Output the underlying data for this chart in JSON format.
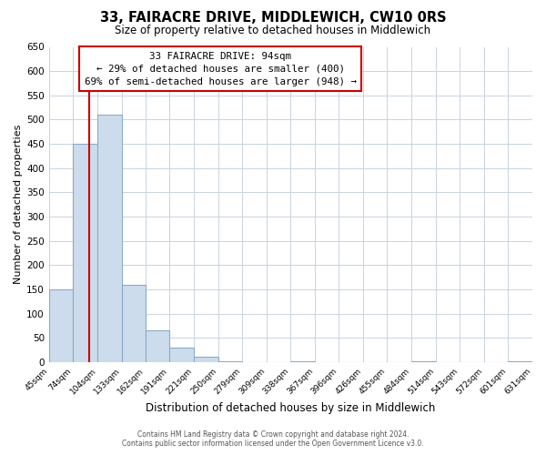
{
  "title": "33, FAIRACRE DRIVE, MIDDLEWICH, CW10 0RS",
  "subtitle": "Size of property relative to detached houses in Middlewich",
  "xlabel": "Distribution of detached houses by size in Middlewich",
  "ylabel": "Number of detached properties",
  "bin_edges": [
    45,
    74,
    104,
    133,
    162,
    191,
    221,
    250,
    279,
    309,
    338,
    367,
    396,
    426,
    455,
    484,
    514,
    543,
    572,
    601,
    631
  ],
  "bin_labels": [
    "45sqm",
    "74sqm",
    "104sqm",
    "133sqm",
    "162sqm",
    "191sqm",
    "221sqm",
    "250sqm",
    "279sqm",
    "309sqm",
    "338sqm",
    "367sqm",
    "396sqm",
    "426sqm",
    "455sqm",
    "484sqm",
    "514sqm",
    "543sqm",
    "572sqm",
    "601sqm",
    "631sqm"
  ],
  "bar_heights": [
    150,
    450,
    510,
    160,
    65,
    30,
    12,
    2,
    0,
    0,
    2,
    0,
    0,
    0,
    0,
    2,
    0,
    0,
    0,
    2
  ],
  "bar_color": "#cddcec",
  "bar_edge_color": "#8aaac8",
  "property_line_x": 94,
  "property_line_color": "#cc0000",
  "ylim": [
    0,
    650
  ],
  "yticks": [
    0,
    50,
    100,
    150,
    200,
    250,
    300,
    350,
    400,
    450,
    500,
    550,
    600,
    650
  ],
  "annotation_title": "33 FAIRACRE DRIVE: 94sqm",
  "annotation_line1": "← 29% of detached houses are smaller (400)",
  "annotation_line2": "69% of semi-detached houses are larger (948) →",
  "annotation_box_color": "#ffffff",
  "annotation_box_edge_color": "#cc0000",
  "footer_line1": "Contains HM Land Registry data © Crown copyright and database right 2024.",
  "footer_line2": "Contains public sector information licensed under the Open Government Licence v3.0.",
  "background_color": "#ffffff",
  "grid_color": "#c8d4e0"
}
